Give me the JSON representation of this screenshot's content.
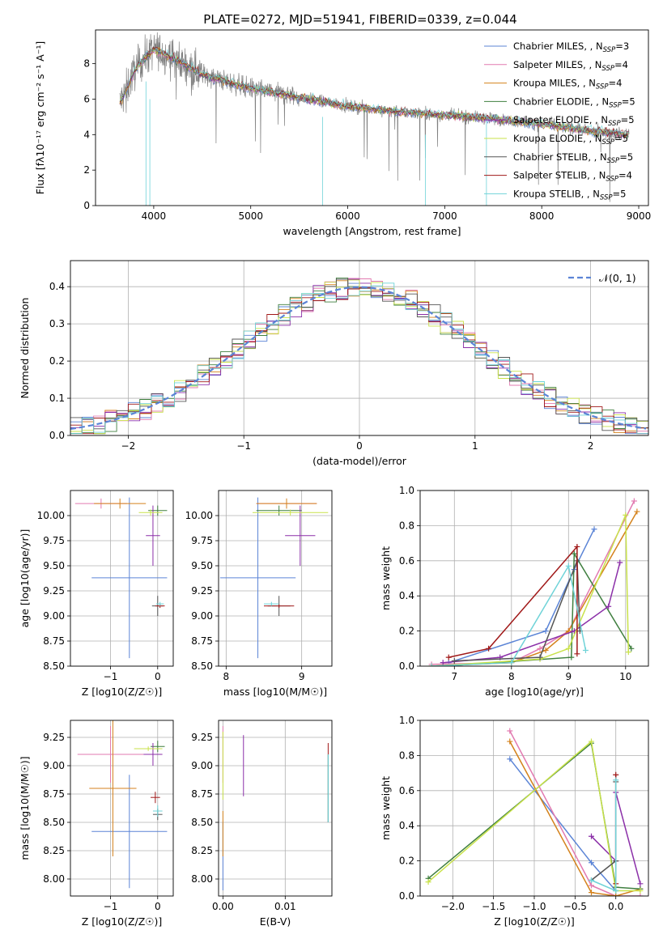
{
  "title": "PLATE=0272, MJD=51941, FIBERID=0339, z=0.044",
  "models": [
    {
      "name": "Chabrier MILES",
      "nssp": "3",
      "color": "#5b84d6"
    },
    {
      "name": "Salpeter MILES",
      "nssp": "4",
      "color": "#e27ab0"
    },
    {
      "name": "Kroupa MILES",
      "nssp": "4",
      "color": "#d4821c"
    },
    {
      "name": "Chabrier ELODIE",
      "nssp": "5",
      "color": "#3f7f3f"
    },
    {
      "name": "Salpeter ELODIE",
      "nssp": "5",
      "color": "#8b2fa8"
    },
    {
      "name": "Kroupa ELODIE",
      "nssp": "5",
      "color": "#c9e24a"
    },
    {
      "name": "Chabrier STELIB",
      "nssp": "5",
      "color": "#555555"
    },
    {
      "name": "Salpeter STELIB",
      "nssp": "4",
      "color": "#a01818"
    },
    {
      "name": "Kroupa STELIB",
      "nssp": "5",
      "color": "#6fd3d8"
    }
  ],
  "nssp_prefix": "N",
  "nssp_sub": "SSP",
  "nssp_eq": "=",
  "chart_data": [
    {
      "id": "spectrum",
      "type": "line",
      "xlabel": "wavelength [Angstrom, rest frame]",
      "ylabel": "Flux [fλ10⁻¹⁷ erg cm⁻² s⁻¹ A⁻¹]",
      "xlim": [
        3400,
        9100
      ],
      "ylim": [
        0,
        9.9
      ],
      "xticks": [
        4000,
        5000,
        6000,
        7000,
        8000,
        9000
      ],
      "yticks": [
        0,
        2,
        4,
        6,
        8
      ],
      "grid": false,
      "legend": "top-right",
      "data_color": "#808080",
      "continuum_x": [
        3650,
        3700,
        3800,
        3900,
        4000,
        4100,
        4200,
        4300,
        4500,
        4800,
        5000,
        5300,
        5600,
        6000,
        6500,
        7000,
        7500,
        8000,
        8500,
        8900
      ],
      "continuum_y": [
        5.8,
        6.3,
        7.6,
        8.3,
        8.8,
        8.6,
        8.3,
        8.0,
        7.4,
        6.9,
        6.6,
        6.3,
        6.0,
        5.6,
        5.3,
        5.1,
        4.9,
        4.6,
        4.2,
        4.0
      ],
      "model_x_range": [
        3650,
        8900
      ]
    },
    {
      "id": "residuals",
      "type": "histogram",
      "xlabel": "(data-model)/error",
      "ylabel": "Normed distribution",
      "xlim": [
        -2.5,
        2.5
      ],
      "ylim": [
        0,
        0.47
      ],
      "xticks": [
        -2,
        -1,
        0,
        1,
        2
      ],
      "yticks": [
        0.0,
        0.1,
        0.2,
        0.3,
        0.4
      ],
      "grid": true,
      "legend": "top-right",
      "normal_label": "𝒩(0, 1)",
      "normal_color": "#5b84d6"
    },
    {
      "id": "age-vs-z",
      "type": "errorbar",
      "xlabel": "Z [log10(Z/Z☉)]",
      "ylabel": "age  [log10(age/yr)]",
      "xlim": [
        -1.85,
        0.33
      ],
      "ylim": [
        8.5,
        10.25
      ],
      "xticks": [
        -1,
        0
      ],
      "yticks": [
        8.5,
        8.75,
        9.0,
        9.25,
        9.5,
        9.75,
        10.0
      ],
      "grid": true,
      "points": [
        {
          "x": -0.6,
          "xerr": 0.8,
          "y": 9.38,
          "yerr": 0.8,
          "c": 0
        },
        {
          "x": -1.2,
          "xerr": 0.55,
          "y": 10.12,
          "yerr": 0.05,
          "c": 1
        },
        {
          "x": -0.8,
          "xerr": 0.55,
          "y": 10.12,
          "yerr": 0.05,
          "c": 2
        },
        {
          "x": 0.0,
          "xerr": 0.2,
          "y": 10.05,
          "yerr": 0.05,
          "c": 3
        },
        {
          "x": -0.1,
          "xerr": 0.15,
          "y": 9.8,
          "yerr": 0.3,
          "c": 4
        },
        {
          "x": -0.15,
          "xerr": 0.25,
          "y": 10.03,
          "yerr": 0.03,
          "c": 5
        },
        {
          "x": 0.0,
          "xerr": 0.12,
          "y": 9.1,
          "yerr": 0.1,
          "c": 6
        },
        {
          "x": 0.05,
          "xerr": 0.1,
          "y": 9.1,
          "yerr": 0.02,
          "c": 7
        },
        {
          "x": 0.05,
          "xerr": 0.08,
          "y": 9.12,
          "yerr": 0.02,
          "c": 8
        }
      ]
    },
    {
      "id": "age-vs-mass",
      "type": "errorbar",
      "xlabel": "mass [log10(M/M☉)]",
      "ylabel": "",
      "xlim": [
        7.9,
        9.4
      ],
      "ylim": [
        8.5,
        10.25
      ],
      "xticks": [
        8,
        9
      ],
      "yticks": [
        8.5,
        8.75,
        9.0,
        9.25,
        9.5,
        9.75,
        10.0
      ],
      "grid": true,
      "points": [
        {
          "x": 8.42,
          "xerr": 0.5,
          "y": 9.38,
          "yerr": 0.8,
          "c": 0
        },
        {
          "x": 8.8,
          "xerr": 0.4,
          "y": 10.12,
          "yerr": 0.05,
          "c": 1
        },
        {
          "x": 8.8,
          "xerr": 0.4,
          "y": 10.12,
          "yerr": 0.05,
          "c": 2
        },
        {
          "x": 8.7,
          "xerr": 0.3,
          "y": 10.05,
          "yerr": 0.05,
          "c": 3
        },
        {
          "x": 8.98,
          "xerr": 0.2,
          "y": 9.8,
          "yerr": 0.3,
          "c": 4
        },
        {
          "x": 8.85,
          "xerr": 0.5,
          "y": 10.03,
          "yerr": 0.03,
          "c": 5
        },
        {
          "x": 8.7,
          "xerr": 0.15,
          "y": 9.1,
          "yerr": 0.1,
          "c": 6
        },
        {
          "x": 8.7,
          "xerr": 0.2,
          "y": 9.1,
          "yerr": 0.02,
          "c": 7
        },
        {
          "x": 8.6,
          "xerr": 0.1,
          "y": 9.12,
          "yerr": 0.02,
          "c": 8
        }
      ]
    },
    {
      "id": "mass-weight-vs-age",
      "type": "line",
      "xlabel": "age  [log10(age/yr)]",
      "ylabel": "mass weight",
      "xlim": [
        6.4,
        10.4
      ],
      "ylim": [
        0,
        1.0
      ],
      "xticks": [
        7,
        8,
        9,
        10
      ],
      "yticks": [
        0.0,
        0.2,
        0.4,
        0.6,
        0.8,
        1.0
      ],
      "grid": true,
      "series": [
        {
          "c": 0,
          "x": [
            6.9,
            8.6,
            9.1,
            9.45
          ],
          "y": [
            0.02,
            0.2,
            0.55,
            0.78
          ]
        },
        {
          "c": 1,
          "x": [
            6.6,
            8.0,
            8.5,
            9.0,
            10.15
          ],
          "y": [
            0.01,
            0.02,
            0.1,
            0.2,
            0.94
          ]
        },
        {
          "c": 2,
          "x": [
            6.6,
            8.0,
            8.6,
            9.0,
            10.2
          ],
          "y": [
            0.0,
            0.02,
            0.09,
            0.2,
            0.88
          ]
        },
        {
          "c": 3,
          "x": [
            6.8,
            9.05,
            9.1,
            10.1
          ],
          "y": [
            0.0,
            0.05,
            0.64,
            0.1
          ]
        },
        {
          "c": 4,
          "x": [
            6.8,
            7.8,
            9.1,
            9.7,
            9.9
          ],
          "y": [
            0.02,
            0.05,
            0.2,
            0.34,
            0.59
          ]
        },
        {
          "c": 5,
          "x": [
            6.6,
            8.5,
            9.0,
            10.0,
            10.05
          ],
          "y": [
            0.0,
            0.04,
            0.1,
            0.86,
            0.08
          ]
        },
        {
          "c": 6,
          "x": [
            7.0,
            8.5,
            9.15,
            9.2
          ],
          "y": [
            0.03,
            0.05,
            0.6,
            0.2
          ]
        },
        {
          "c": 7,
          "x": [
            6.9,
            7.6,
            9.15,
            9.15
          ],
          "y": [
            0.05,
            0.1,
            0.68,
            0.07
          ]
        },
        {
          "c": 8,
          "x": [
            6.6,
            8.0,
            9.0,
            9.3
          ],
          "y": [
            0.0,
            0.02,
            0.57,
            0.09
          ]
        }
      ]
    },
    {
      "id": "mass-vs-z",
      "type": "errorbar",
      "xlabel": "Z [log10(Z/Z☉)]",
      "ylabel": "mass [log10(M/M☉)]",
      "xlim": [
        -1.85,
        0.33
      ],
      "ylim": [
        7.85,
        9.4
      ],
      "xticks": [
        -1,
        0
      ],
      "yticks": [
        8.0,
        8.25,
        8.5,
        8.75,
        9.0,
        9.25
      ],
      "grid": true,
      "points": [
        {
          "x": -0.6,
          "xerr": 0.8,
          "y": 8.42,
          "yerr": 0.5,
          "c": 0
        },
        {
          "x": -1.0,
          "xerr": 0.7,
          "y": 9.1,
          "yerr": 0.25,
          "c": 1
        },
        {
          "x": -0.95,
          "xerr": 0.5,
          "y": 8.8,
          "yerr": 0.6,
          "c": 2
        },
        {
          "x": 0.0,
          "xerr": 0.15,
          "y": 9.17,
          "yerr": 0.05,
          "c": 3
        },
        {
          "x": -0.1,
          "xerr": 0.2,
          "y": 9.1,
          "yerr": 0.1,
          "c": 4
        },
        {
          "x": -0.2,
          "xerr": 0.3,
          "y": 9.15,
          "yerr": 0.02,
          "c": 5
        },
        {
          "x": 0.0,
          "xerr": 0.1,
          "y": 8.57,
          "yerr": 0.05,
          "c": 6
        },
        {
          "x": -0.05,
          "xerr": 0.1,
          "y": 8.72,
          "yerr": 0.05,
          "c": 7
        },
        {
          "x": 0.0,
          "xerr": 0.1,
          "y": 8.6,
          "yerr": 0.05,
          "c": 8
        }
      ]
    },
    {
      "id": "mass-vs-ebv",
      "type": "errorbar",
      "xlabel": "E(B-V)",
      "ylabel": "",
      "xlim": [
        -0.0007,
        0.0175
      ],
      "ylim": [
        7.85,
        9.4
      ],
      "xticks": [
        0.0,
        0.01
      ],
      "yticks": [
        8.0,
        8.25,
        8.5,
        8.75,
        9.0,
        9.25
      ],
      "grid": true,
      "points": [
        {
          "x": 0.0,
          "xerr": 0,
          "y": 8.2,
          "yerr": 0.3,
          "c": 0
        },
        {
          "x": 0.0,
          "xerr": 0,
          "y": 9.1,
          "yerr": 0.25,
          "c": 1
        },
        {
          "x": 0.0,
          "xerr": 0,
          "y": 8.4,
          "yerr": 0.2,
          "c": 2
        },
        {
          "x": 0.0169,
          "xerr": 0,
          "y": 8.8,
          "yerr": 0.3,
          "c": 3
        },
        {
          "x": 0.0033,
          "xerr": 0,
          "y": 9.0,
          "yerr": 0.27,
          "c": 4
        },
        {
          "x": 0.0,
          "xerr": 0,
          "y": 9.0,
          "yerr": 0.3,
          "c": 5
        },
        {
          "x": 0.0169,
          "xerr": 0,
          "y": 8.8,
          "yerr": 0.3,
          "c": 6
        },
        {
          "x": 0.0169,
          "xerr": 0,
          "y": 9.15,
          "yerr": 0.05,
          "c": 7
        },
        {
          "x": 0.0169,
          "xerr": 0,
          "y": 8.8,
          "yerr": 0.3,
          "c": 8
        }
      ]
    },
    {
      "id": "mass-weight-vs-z",
      "type": "line",
      "xlabel": "Z [log10(Z/Z☉)]",
      "ylabel": "mass weight",
      "xlim": [
        -2.4,
        0.4
      ],
      "ylim": [
        0,
        1.0
      ],
      "xticks": [
        -2.0,
        -1.5,
        -1.0,
        -0.5,
        0.0
      ],
      "yticks": [
        0.0,
        0.2,
        0.4,
        0.6,
        0.8,
        1.0
      ],
      "grid": true,
      "series": [
        {
          "c": 0,
          "x": [
            -1.3,
            -0.3,
            0.0
          ],
          "y": [
            0.78,
            0.19,
            0.03
          ]
        },
        {
          "c": 1,
          "x": [
            -1.3,
            -0.3,
            0.0,
            0.3
          ],
          "y": [
            0.94,
            0.06,
            0.0,
            0.0
          ]
        },
        {
          "c": 2,
          "x": [
            -1.3,
            -0.3,
            0.0,
            0.3
          ],
          "y": [
            0.88,
            0.02,
            0.0,
            0.04
          ]
        },
        {
          "c": 3,
          "x": [
            -2.3,
            -0.3,
            0.0,
            0.3
          ],
          "y": [
            0.1,
            0.87,
            0.05,
            0.04
          ]
        },
        {
          "c": 4,
          "x": [
            -0.3,
            -0.0,
            0.0,
            0.3
          ],
          "y": [
            0.34,
            0.2,
            0.59,
            0.07
          ]
        },
        {
          "c": 5,
          "x": [
            -2.3,
            -0.3,
            0.0,
            0.3
          ],
          "y": [
            0.08,
            0.88,
            0.03,
            0.03
          ]
        },
        {
          "c": 6,
          "x": [
            -0.3,
            0.0,
            0.0
          ],
          "y": [
            0.09,
            0.2,
            0.65
          ]
        },
        {
          "c": 7,
          "x": [
            0.0,
            0.0
          ],
          "y": [
            0.07,
            0.69
          ]
        },
        {
          "c": 8,
          "x": [
            -0.3,
            0.0,
            0.0
          ],
          "y": [
            0.09,
            0.03,
            0.66
          ]
        }
      ]
    }
  ]
}
